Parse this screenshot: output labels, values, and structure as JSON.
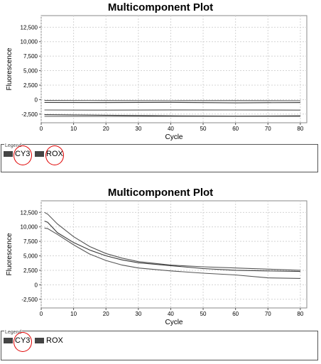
{
  "chart_data": [
    {
      "type": "line",
      "title": "Multicomponent Plot",
      "xlabel": "Cycle",
      "ylabel": "Fluorescence",
      "xlim": [
        0,
        82
      ],
      "ylim": [
        -4000,
        14500
      ],
      "xticks": [
        0,
        10,
        20,
        30,
        40,
        50,
        60,
        70,
        80
      ],
      "yticks": [
        -2500,
        0,
        2500,
        5000,
        7500,
        10000,
        12500
      ],
      "ytick_labels": [
        "-2,500",
        "0",
        "2,500",
        "5,000",
        "7,500",
        "10,000",
        "12,500"
      ],
      "grid": true,
      "series": [
        {
          "x": [
            1,
            20,
            40,
            60,
            80
          ],
          "values": [
            -150,
            -180,
            -200,
            -180,
            -200
          ]
        },
        {
          "x": [
            1,
            20,
            40,
            60,
            80
          ],
          "values": [
            -500,
            -520,
            -480,
            -560,
            -520
          ]
        },
        {
          "x": [
            1,
            20,
            40,
            60,
            80
          ],
          "values": [
            -1800,
            -1820,
            -1780,
            -1800,
            -1820
          ]
        },
        {
          "x": [
            1,
            20,
            40,
            60,
            80
          ],
          "values": [
            -2600,
            -2700,
            -2800,
            -2850,
            -2800
          ]
        },
        {
          "x": [
            1,
            20,
            40,
            60,
            80
          ],
          "values": [
            -2900,
            -2900,
            -2880,
            -2900,
            -2900
          ]
        }
      ],
      "legend": {
        "caption": "Legend",
        "entries": [
          {
            "label": "CY3",
            "color": "#444444",
            "circled": true
          },
          {
            "label": "ROX",
            "color": "#444444",
            "circled": true
          }
        ]
      }
    },
    {
      "type": "line",
      "title": "Multicomponent Plot",
      "xlabel": "Cycle",
      "ylabel": "Fluorescence",
      "xlim": [
        0,
        82
      ],
      "ylim": [
        -4000,
        14500
      ],
      "xticks": [
        0,
        10,
        20,
        30,
        40,
        50,
        60,
        70,
        80
      ],
      "yticks": [
        -2500,
        0,
        2500,
        5000,
        7500,
        10000,
        12500
      ],
      "ytick_labels": [
        "-2,500",
        "0",
        "2,500",
        "5,000",
        "7,500",
        "10,000",
        "12,500"
      ],
      "grid": true,
      "series": [
        {
          "x": [
            1,
            2,
            5,
            10,
            15,
            20,
            25,
            30,
            40,
            50,
            60,
            70,
            80
          ],
          "values": [
            12500,
            12200,
            10500,
            8300,
            6600,
            5400,
            4600,
            4000,
            3400,
            3100,
            2900,
            2700,
            2500
          ]
        },
        {
          "x": [
            1,
            2,
            5,
            10,
            15,
            20,
            25,
            30,
            40,
            50,
            60,
            70,
            80
          ],
          "values": [
            11000,
            10800,
            9000,
            7300,
            6000,
            5000,
            4300,
            3800,
            3300,
            2800,
            2500,
            2400,
            2300
          ]
        },
        {
          "x": [
            1,
            2,
            5,
            10,
            15,
            20,
            25,
            30,
            40,
            50,
            60,
            70,
            80
          ],
          "values": [
            9800,
            9700,
            8700,
            6900,
            5300,
            4200,
            3400,
            2900,
            2400,
            2000,
            1700,
            1200,
            1100
          ]
        }
      ],
      "legend": {
        "caption": "Legend",
        "entries": [
          {
            "label": "CY3",
            "color": "#444444",
            "circled": true
          },
          {
            "label": "ROX",
            "color": "#444444",
            "circled": false
          }
        ]
      }
    }
  ]
}
